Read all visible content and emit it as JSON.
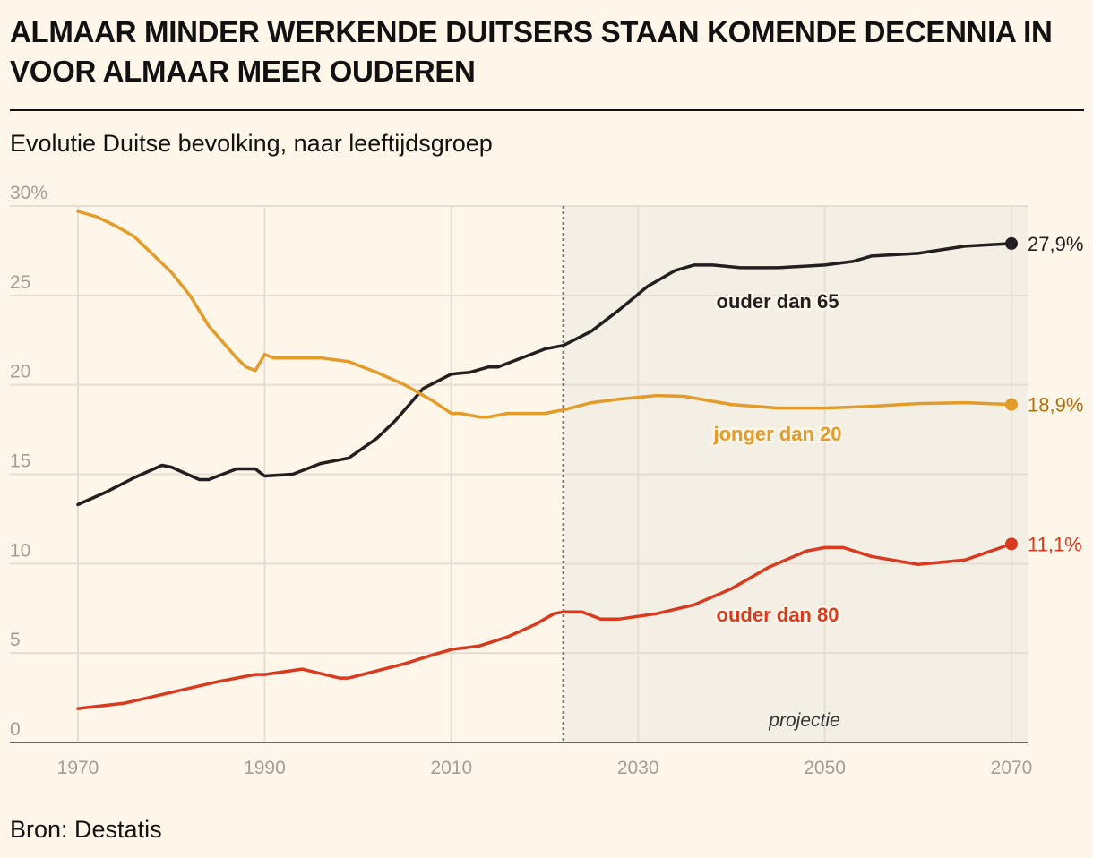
{
  "title": "ALMAAR MINDER WERKENDE DUITSERS STAAN KOMENDE DECENNIA IN VOOR ALMAAR MEER OUDEREN",
  "subtitle": "Evolutie Duitse bevolking, naar leeftijdsgroep",
  "source": "Bron: Destatis",
  "chart_data": {
    "type": "line",
    "title": "Evolutie Duitse bevolking, naar leeftijdsgroep",
    "xlabel": "",
    "ylabel": "",
    "xlim": [
      1970,
      2070
    ],
    "ylim": [
      0,
      30
    ],
    "grid": true,
    "x_ticks": [
      "1970",
      "1990",
      "2010",
      "2030",
      "2050",
      "2070"
    ],
    "x_tick_values": [
      1970,
      1990,
      2010,
      2030,
      2050,
      2070
    ],
    "y_ticks": [
      "30%",
      "25",
      "20",
      "15",
      "10",
      "5",
      "0"
    ],
    "y_tick_values": [
      30,
      25,
      20,
      15,
      10,
      5,
      0
    ],
    "projection_start": 2022,
    "projection_label": "projectie",
    "series": [
      {
        "name": "ouder dan 65",
        "color": "#231f20",
        "end_label": "27,9%",
        "x": [
          1970,
          1973,
          1976,
          1979,
          1980,
          1983,
          1984,
          1987,
          1989,
          1990,
          1993,
          1996,
          1999,
          2002,
          2004,
          2007,
          2010,
          2012,
          2014,
          2015,
          2018,
          2020,
          2022,
          2025,
          2028,
          2031,
          2034,
          2036,
          2038,
          2041,
          2045,
          2050,
          2053,
          2055,
          2060,
          2065,
          2070
        ],
        "values": [
          13.3,
          14.0,
          14.8,
          15.5,
          15.4,
          14.7,
          14.7,
          15.3,
          15.3,
          14.9,
          15.0,
          15.6,
          15.9,
          17.0,
          18.0,
          19.8,
          20.6,
          20.7,
          21.0,
          21.0,
          21.6,
          22.0,
          22.2,
          23.0,
          24.2,
          25.5,
          26.4,
          26.7,
          26.7,
          26.55,
          26.55,
          26.7,
          26.9,
          27.2,
          27.35,
          27.75,
          27.9
        ]
      },
      {
        "name": "jonger dan 20",
        "color": "#e39b2a",
        "end_color": "#b0700f",
        "end_label": "18,9%",
        "x": [
          1970,
          1972,
          1974,
          1976,
          1978,
          1980,
          1982,
          1984,
          1987,
          1988,
          1989,
          1990,
          1991,
          1993,
          1996,
          1999,
          2002,
          2005,
          2008,
          2010,
          2011,
          2013,
          2014,
          2016,
          2020,
          2022,
          2025,
          2028,
          2032,
          2035,
          2040,
          2045,
          2050,
          2055,
          2060,
          2065,
          2070
        ],
        "values": [
          29.7,
          29.4,
          28.9,
          28.3,
          27.3,
          26.3,
          25.0,
          23.3,
          21.5,
          21.0,
          20.8,
          21.7,
          21.5,
          21.5,
          21.5,
          21.3,
          20.7,
          20.0,
          19.1,
          18.4,
          18.4,
          18.2,
          18.2,
          18.4,
          18.4,
          18.6,
          19.0,
          19.2,
          19.4,
          19.35,
          18.9,
          18.7,
          18.7,
          18.8,
          18.95,
          19.0,
          18.9
        ]
      },
      {
        "name": "ouder dan 80",
        "color": "#d93a1f",
        "end_label": "11,1%",
        "x": [
          1970,
          1975,
          1980,
          1985,
          1989,
          1990,
          1994,
          1998,
          1999,
          2002,
          2005,
          2008,
          2010,
          2013,
          2016,
          2019,
          2021,
          2022,
          2024,
          2026,
          2028,
          2032,
          2036,
          2040,
          2044,
          2048,
          2050,
          2052,
          2055,
          2060,
          2065,
          2070
        ],
        "values": [
          1.9,
          2.2,
          2.8,
          3.4,
          3.8,
          3.8,
          4.1,
          3.6,
          3.6,
          4.0,
          4.4,
          4.9,
          5.2,
          5.4,
          5.9,
          6.6,
          7.2,
          7.3,
          7.3,
          6.9,
          6.9,
          7.2,
          7.7,
          8.6,
          9.8,
          10.7,
          10.9,
          10.9,
          10.4,
          9.95,
          10.2,
          11.1
        ]
      }
    ]
  }
}
